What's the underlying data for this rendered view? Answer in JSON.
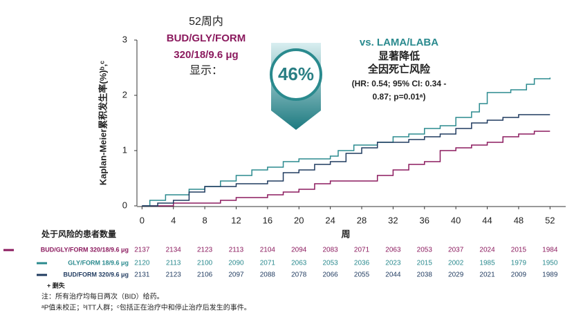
{
  "chart_data": {
    "type": "line",
    "step": true,
    "ylabel": "Kaplan-Meier累积发生率(%)ᵇ,ᶜ",
    "xlabel": "周",
    "xlim": [
      -1,
      54
    ],
    "ylim": [
      0,
      3
    ],
    "xticks": [
      0,
      4,
      8,
      12,
      16,
      20,
      24,
      28,
      32,
      36,
      40,
      44,
      48,
      52
    ],
    "yticks": [
      0,
      1,
      2,
      3
    ],
    "series": [
      {
        "name": "BUD/GLY/FORM 320/18/9.6 μg",
        "color": "#8b1a5e",
        "x": [
          0,
          4,
          10,
          12,
          16,
          18,
          20,
          22,
          24,
          28,
          30,
          32,
          34,
          36,
          38,
          40,
          42,
          44,
          46,
          48,
          50,
          52
        ],
        "values": [
          0,
          0.05,
          0.1,
          0.15,
          0.2,
          0.25,
          0.3,
          0.4,
          0.45,
          0.45,
          0.55,
          0.65,
          0.75,
          0.8,
          1.0,
          1.05,
          1.1,
          1.15,
          1.25,
          1.3,
          1.35,
          1.35
        ],
        "at_risk": [
          2137,
          2134,
          2123,
          2113,
          2104,
          2094,
          2083,
          2071,
          2063,
          2053,
          2037,
          2024,
          2015,
          1984
        ]
      },
      {
        "name": "GLY/FORM 18/9.6 μg",
        "color": "#2a8a8e",
        "x": [
          0,
          1,
          3,
          6,
          8,
          10,
          12,
          14,
          16,
          18,
          20,
          24,
          25,
          27,
          30,
          32,
          34,
          36,
          38,
          40,
          42,
          43,
          44,
          47,
          49,
          50,
          52
        ],
        "values": [
          0,
          0.1,
          0.2,
          0.3,
          0.35,
          0.45,
          0.55,
          0.65,
          0.7,
          0.8,
          0.85,
          0.9,
          1.0,
          1.1,
          1.15,
          1.25,
          1.3,
          1.4,
          1.45,
          1.6,
          1.7,
          1.85,
          2.05,
          2.1,
          2.2,
          2.3,
          2.32
        ],
        "at_risk": [
          2120,
          2113,
          2100,
          2090,
          2071,
          2063,
          2053,
          2036,
          2023,
          2015,
          2002,
          1985,
          1979,
          1950
        ]
      },
      {
        "name": "BUD/FORM 320/9.6 μg",
        "color": "#1f3a5f",
        "x": [
          0,
          2,
          4,
          6,
          8,
          12,
          16,
          18,
          20,
          22,
          24,
          26,
          28,
          30,
          34,
          36,
          38,
          40,
          42,
          44,
          46,
          48,
          52
        ],
        "values": [
          0,
          0.05,
          0.1,
          0.25,
          0.35,
          0.4,
          0.45,
          0.6,
          0.65,
          0.75,
          0.8,
          0.95,
          1.05,
          1.15,
          1.2,
          1.25,
          1.3,
          1.4,
          1.5,
          1.55,
          1.6,
          1.65,
          1.65
        ],
        "at_risk": [
          2131,
          2123,
          2106,
          2097,
          2088,
          2078,
          2066,
          2055,
          2044,
          2038,
          2029,
          2021,
          2009,
          1989
        ]
      }
    ],
    "risk_table_title": "处于风险的患者数量",
    "censor_legend": "+ 删失",
    "annotation_left": [
      "52周内",
      "BUD/GLY/FORM",
      "320/18/9.6 μg",
      "显示："
    ],
    "highlight": "46%",
    "annotation_right": [
      "vs. LAMA/LABA",
      "显著降低",
      "全因死亡风险",
      "(HR: 0.54; 95% CI: 0.34 -",
      "0.87; p=0.01ᵃ)"
    ],
    "notes": [
      "注：所有治疗均每日两次（BID）给药。",
      "ᵃP值未校正；ᵇITT人群；ᶜ包括正在治疗中和停止治疗后发生的事件。"
    ]
  }
}
